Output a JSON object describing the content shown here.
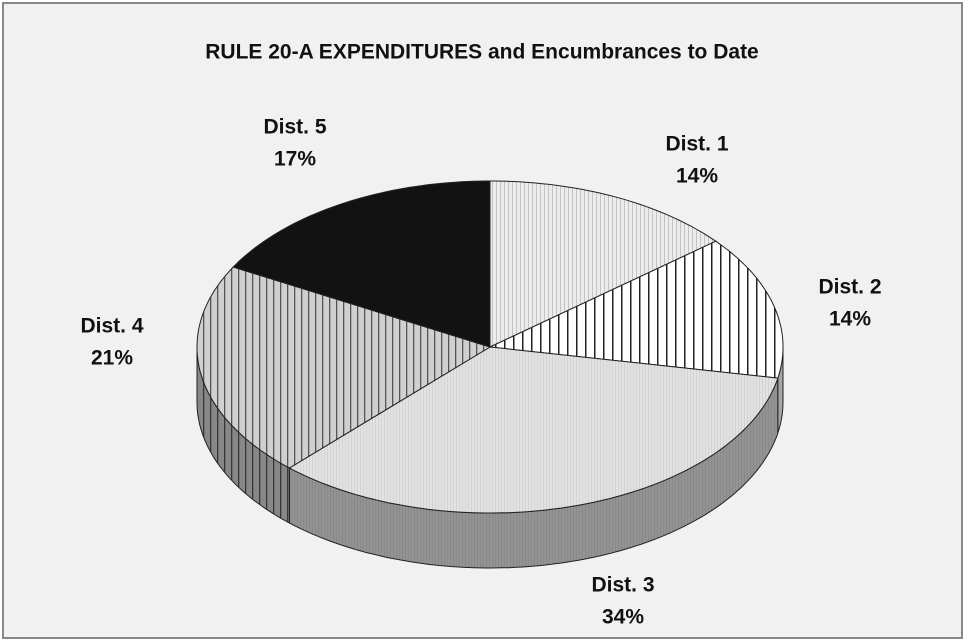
{
  "chart_data": {
    "type": "pie",
    "title": "RULE 20-A EXPENDITURES and Encumbrances to Date",
    "categories": [
      "Dist. 1",
      "Dist. 2",
      "Dist. 3",
      "Dist. 4",
      "Dist. 5"
    ],
    "values": [
      14,
      14,
      34,
      21,
      17
    ],
    "value_labels": [
      "14%",
      "14%",
      "34%",
      "21%",
      "17%"
    ],
    "colors": [
      "#ececec",
      "#ffffff",
      "#e2e2e2",
      "#d0d0d0",
      "#121212"
    ]
  }
}
